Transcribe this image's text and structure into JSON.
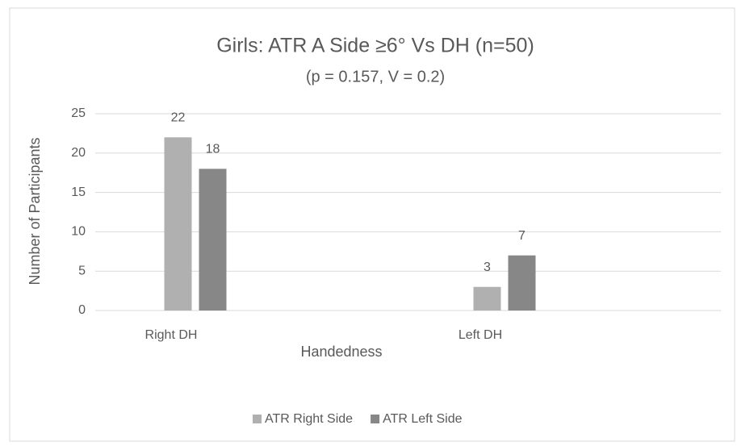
{
  "chart_data": {
    "type": "bar",
    "title": "Girls: ATR A Side ≥6° Vs DH (n=50)",
    "subtitle": "(p = 0.157, V = 0.2)",
    "x_label": "Handedness",
    "y_label": "Number of Participants",
    "categories": [
      "Right DH",
      "Left DH"
    ],
    "series": [
      {
        "name": "ATR Right Side",
        "color": "#b0b0b0",
        "values": [
          22,
          3
        ]
      },
      {
        "name": "ATR Left Side",
        "color": "#878787",
        "values": [
          18,
          7
        ]
      }
    ],
    "ylim": [
      0,
      25
    ],
    "yticks": [
      0,
      5,
      10,
      15,
      20,
      25
    ],
    "grid": true,
    "legend": "bottom"
  }
}
